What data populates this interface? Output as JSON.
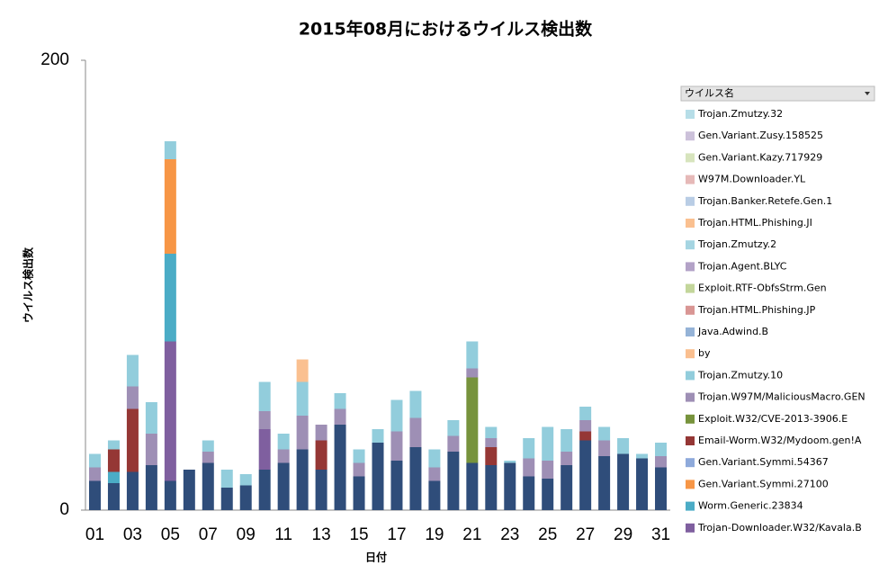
{
  "chart_data": {
    "type": "bar",
    "stacked": true,
    "title": "2015年08月におけるウイルス検出数",
    "y_label": "ウイルス検出数",
    "x_label": "日付",
    "legend_title": "ウイルス名",
    "categories": [
      "01",
      null,
      "03",
      null,
      "05",
      null,
      "07",
      null,
      "09",
      null,
      "11",
      null,
      "13",
      null,
      "15",
      null,
      "17",
      null,
      "19",
      null,
      "21",
      null,
      "23",
      null,
      "25",
      null,
      "27",
      null,
      "29",
      null,
      "31"
    ],
    "ylim": [
      0,
      200
    ],
    "yticks": [
      0,
      200
    ],
    "series": [
      {
        "name": "Trojan.Zmutzy.32",
        "color": "#b7dee8",
        "values": [
          0,
          0,
          0,
          0,
          0,
          0,
          0,
          0,
          0,
          0,
          0,
          0,
          0,
          0,
          0,
          0,
          0,
          0,
          0,
          0,
          0,
          0,
          0,
          0,
          0,
          0,
          0,
          0,
          0,
          0,
          0
        ]
      },
      {
        "name": "Gen.Variant.Zusy.158525",
        "color": "#ccc1da",
        "values": [
          0,
          0,
          0,
          0,
          0,
          0,
          0,
          0,
          0,
          0,
          0,
          0,
          0,
          0,
          0,
          0,
          0,
          0,
          0,
          0,
          0,
          0,
          0,
          0,
          0,
          0,
          0,
          0,
          0,
          0,
          0
        ]
      },
      {
        "name": "Gen.Variant.Kazy.717929",
        "color": "#d7e4bd",
        "values": [
          0,
          0,
          0,
          0,
          0,
          0,
          0,
          0,
          0,
          0,
          0,
          0,
          0,
          0,
          0,
          0,
          0,
          0,
          0,
          0,
          0,
          0,
          0,
          0,
          0,
          0,
          0,
          0,
          0,
          0,
          0
        ]
      },
      {
        "name": "W97M.Downloader.YL",
        "color": "#e6b9b8",
        "values": [
          0,
          0,
          0,
          0,
          0,
          0,
          0,
          0,
          0,
          0,
          0,
          0,
          0,
          0,
          0,
          0,
          0,
          0,
          0,
          0,
          0,
          0,
          0,
          0,
          0,
          0,
          0,
          0,
          0,
          0,
          0
        ]
      },
      {
        "name": "Trojan.Banker.Retefe.Gen.1",
        "color": "#b9cde5",
        "values": [
          0,
          0,
          0,
          0,
          0,
          0,
          0,
          0,
          0,
          0,
          0,
          0,
          0,
          0,
          0,
          0,
          0,
          0,
          0,
          0,
          0,
          0,
          0,
          0,
          0,
          0,
          0,
          0,
          0,
          0,
          0
        ]
      },
      {
        "name": "Trojan.HTML.Phishing.JI",
        "color": "#fac090",
        "values": [
          0,
          0,
          0,
          0,
          0,
          0,
          0,
          0,
          0,
          0,
          0,
          10,
          0,
          0,
          0,
          0,
          0,
          0,
          0,
          0,
          0,
          0,
          0,
          0,
          0,
          0,
          0,
          0,
          0,
          0,
          0
        ]
      },
      {
        "name": "Trojan.Zmutzy.2",
        "color": "#a5d5e2",
        "values": [
          0,
          0,
          0,
          0,
          0,
          0,
          0,
          0,
          0,
          0,
          0,
          0,
          0,
          0,
          0,
          0,
          0,
          0,
          0,
          0,
          0,
          0,
          0,
          0,
          0,
          0,
          0,
          0,
          0,
          0,
          0
        ]
      },
      {
        "name": "Trojan.Agent.BLYC",
        "color": "#b3a2c7",
        "values": [
          0,
          0,
          0,
          0,
          0,
          0,
          0,
          0,
          0,
          0,
          0,
          0,
          0,
          0,
          0,
          0,
          0,
          0,
          0,
          0,
          0,
          0,
          0,
          0,
          0,
          0,
          0,
          0,
          0,
          0,
          0
        ]
      },
      {
        "name": "Exploit.RTF-ObfsStrm.Gen",
        "color": "#c3d69b",
        "values": [
          0,
          0,
          0,
          0,
          0,
          0,
          0,
          0,
          0,
          0,
          0,
          0,
          0,
          0,
          0,
          0,
          0,
          0,
          0,
          0,
          0,
          0,
          0,
          0,
          0,
          0,
          0,
          0,
          0,
          0,
          0
        ]
      },
      {
        "name": "Trojan.HTML.Phishing.JP",
        "color": "#d99694",
        "values": [
          0,
          0,
          0,
          0,
          0,
          0,
          0,
          0,
          0,
          0,
          0,
          0,
          0,
          0,
          0,
          0,
          0,
          0,
          0,
          0,
          0,
          0,
          0,
          0,
          0,
          0,
          0,
          0,
          0,
          0,
          0
        ]
      },
      {
        "name": "Java.Adwind.B",
        "color": "#95b3d7",
        "values": [
          0,
          0,
          0,
          0,
          0,
          0,
          0,
          0,
          0,
          0,
          0,
          0,
          0,
          0,
          0,
          0,
          0,
          0,
          0,
          0,
          0,
          0,
          0,
          0,
          0,
          0,
          0,
          0,
          0,
          0,
          0
        ]
      },
      {
        "name": "by",
        "color": "#fabf8f",
        "values": [
          0,
          0,
          0,
          0,
          0,
          0,
          0,
          0,
          0,
          0,
          0,
          0,
          0,
          0,
          0,
          0,
          0,
          0,
          0,
          0,
          0,
          0,
          0,
          0,
          0,
          0,
          0,
          0,
          0,
          0,
          0
        ]
      },
      {
        "name": "Trojan.Zmutzy.10",
        "color": "#92cddc",
        "values": [
          6,
          4,
          14,
          14,
          8,
          0,
          5,
          8,
          5,
          13,
          7,
          15,
          0,
          7,
          6,
          6,
          14,
          12,
          8,
          7,
          12,
          5,
          1,
          9,
          15,
          10,
          6,
          6,
          7,
          2,
          6
        ]
      },
      {
        "name": "Trojan.W97M/MaliciousMacro.GEN",
        "color": "#9e8fb5",
        "values": [
          6,
          0,
          10,
          14,
          0,
          0,
          5,
          0,
          0,
          8,
          6,
          15,
          7,
          7,
          6,
          0,
          13,
          13,
          6,
          7,
          4,
          4,
          0,
          8,
          8,
          6,
          5,
          7,
          0,
          0,
          5
        ]
      },
      {
        "name": "Exploit.W32/CVE-2013-3906.E",
        "color": "#77933c",
        "values": [
          0,
          0,
          0,
          0,
          0,
          0,
          0,
          0,
          0,
          0,
          0,
          0,
          0,
          0,
          0,
          0,
          0,
          0,
          0,
          0,
          38,
          0,
          0,
          0,
          0,
          0,
          0,
          0,
          0,
          0,
          0
        ]
      },
      {
        "name": "Email-Worm.W32/Mydoom.gen!A",
        "color": "#953735",
        "values": [
          0,
          10,
          28,
          0,
          0,
          0,
          0,
          0,
          0,
          0,
          0,
          0,
          13,
          0,
          0,
          0,
          0,
          0,
          0,
          0,
          0,
          8,
          0,
          0,
          0,
          0,
          4,
          0,
          0,
          0,
          0
        ]
      },
      {
        "name": "Gen.Variant.Symmi.54367",
        "color": "#8eaadb",
        "values": [
          0,
          0,
          0,
          0,
          0,
          0,
          0,
          0,
          0,
          0,
          0,
          0,
          0,
          0,
          0,
          0,
          0,
          0,
          0,
          0,
          0,
          0,
          0,
          0,
          0,
          0,
          0,
          0,
          0,
          0,
          0
        ]
      },
      {
        "name": "Gen.Variant.Symmi.27100",
        "color": "#f79646",
        "values": [
          0,
          0,
          0,
          0,
          42,
          0,
          0,
          0,
          0,
          0,
          0,
          0,
          0,
          0,
          0,
          0,
          0,
          0,
          0,
          0,
          0,
          0,
          0,
          0,
          0,
          0,
          0,
          0,
          0,
          0,
          0
        ]
      },
      {
        "name": "Worm.Generic.23834",
        "color": "#4bacc6",
        "values": [
          0,
          5,
          0,
          0,
          39,
          0,
          0,
          0,
          0,
          0,
          0,
          0,
          0,
          0,
          0,
          0,
          0,
          0,
          0,
          0,
          0,
          0,
          0,
          0,
          0,
          0,
          0,
          0,
          0,
          0,
          0
        ]
      },
      {
        "name": "Trojan-Downloader.W32/Kavala.B",
        "color": "#7f5f9f",
        "values": [
          0,
          0,
          0,
          0,
          62,
          0,
          0,
          0,
          0,
          18,
          0,
          0,
          0,
          0,
          0,
          0,
          0,
          0,
          0,
          0,
          0,
          0,
          0,
          0,
          0,
          0,
          0,
          0,
          0,
          0,
          0
        ]
      },
      {
        "color": "#2f4d7a",
        "values": [
          13,
          12,
          17,
          20,
          13,
          18,
          21,
          10,
          11,
          18,
          21,
          27,
          18,
          38,
          15,
          30,
          22,
          28,
          13,
          26,
          21,
          20,
          21,
          15,
          14,
          20,
          31,
          24,
          25,
          23,
          19
        ]
      }
    ]
  }
}
